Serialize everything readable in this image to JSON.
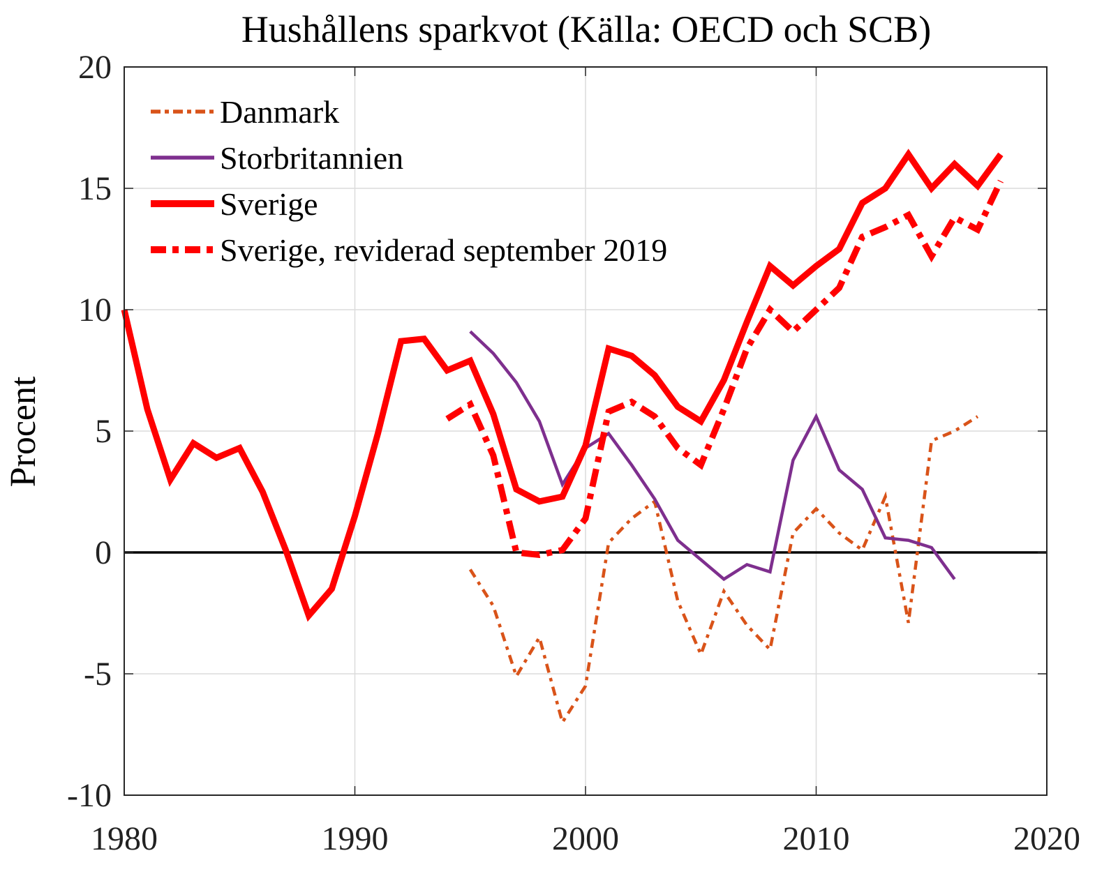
{
  "chart_data": {
    "type": "line",
    "title": "Hushållens sparkvot (Källa: OECD och SCB)",
    "xlabel": "",
    "ylabel": "Procent",
    "xlim": [
      1980,
      2020
    ],
    "ylim": [
      -10,
      20
    ],
    "xticks": [
      "1980",
      "1990",
      "2000",
      "2010",
      "2020"
    ],
    "yticks": [
      "-10",
      "-5",
      "0",
      "5",
      "10",
      "15",
      "20"
    ],
    "xtick_values": [
      1980,
      1990,
      2000,
      2010,
      2020
    ],
    "ytick_values": [
      -10,
      -5,
      0,
      5,
      10,
      15,
      20
    ],
    "grid": true,
    "zero_line": true,
    "legend_position": "top-left",
    "series": [
      {
        "name": "Danmark",
        "color": "#D95319",
        "style": "dash-dot",
        "x": [
          1995,
          1996,
          1997,
          1998,
          1999,
          2000,
          2001,
          2002,
          2003,
          2004,
          2005,
          2006,
          2007,
          2008,
          2009,
          2010,
          2011,
          2012,
          2013,
          2014,
          2015,
          2016,
          2017
        ],
        "values": [
          -0.7,
          -2.2,
          -5.1,
          -3.5,
          -7.0,
          -5.5,
          0.4,
          1.4,
          2.1,
          -2.0,
          -4.2,
          -1.6,
          -3.0,
          -4.0,
          0.8,
          1.8,
          0.8,
          0.1,
          2.3,
          -2.9,
          4.6,
          5.0,
          5.6
        ]
      },
      {
        "name": "Storbritannien",
        "color": "#7E2F8E",
        "style": "solid-thin",
        "x": [
          1995,
          1996,
          1997,
          1998,
          1999,
          2000,
          2001,
          2002,
          2003,
          2004,
          2005,
          2006,
          2007,
          2008,
          2009,
          2010,
          2011,
          2012,
          2013,
          2014,
          2015,
          2016
        ],
        "values": [
          9.1,
          8.2,
          7.0,
          5.4,
          2.8,
          4.3,
          4.9,
          3.6,
          2.2,
          0.5,
          -0.3,
          -1.1,
          -0.5,
          -0.8,
          3.8,
          5.6,
          3.4,
          2.6,
          0.6,
          0.5,
          0.2,
          -1.1
        ]
      },
      {
        "name": "Sverige",
        "color": "#FF0000",
        "style": "solid-thick",
        "x": [
          1980,
          1981,
          1982,
          1983,
          1984,
          1985,
          1986,
          1987,
          1988,
          1989,
          1990,
          1991,
          1992,
          1993,
          1994,
          1995,
          1996,
          1997,
          1998,
          1999,
          2000,
          2001,
          2002,
          2003,
          2004,
          2005,
          2006,
          2007,
          2008,
          2009,
          2010,
          2011,
          2012,
          2013,
          2014,
          2015,
          2016,
          2017,
          2018
        ],
        "values": [
          10.0,
          5.9,
          3.0,
          4.5,
          3.9,
          4.3,
          2.5,
          0.1,
          -2.6,
          -1.5,
          1.5,
          4.9,
          8.7,
          8.8,
          7.5,
          7.9,
          5.7,
          2.6,
          2.1,
          2.3,
          4.4,
          8.4,
          8.1,
          7.3,
          6.0,
          5.4,
          7.1,
          9.5,
          11.8,
          11.0,
          11.8,
          12.5,
          14.4,
          15.0,
          16.4,
          15.0,
          16.0,
          15.1,
          16.4
        ]
      },
      {
        "name": "Sverige, reviderad september 2019",
        "color": "#FF0000",
        "style": "dash-dot-thick",
        "x": [
          1994,
          1995,
          1996,
          1997,
          1998,
          1999,
          2000,
          2001,
          2002,
          2003,
          2004,
          2005,
          2006,
          2007,
          2008,
          2009,
          2010,
          2011,
          2012,
          2013,
          2014,
          2015,
          2016,
          2017,
          2018
        ],
        "values": [
          5.5,
          6.1,
          4.0,
          0.0,
          -0.1,
          0.1,
          1.4,
          5.8,
          6.2,
          5.6,
          4.3,
          3.6,
          5.9,
          8.4,
          10.0,
          9.1,
          10.0,
          10.9,
          13.0,
          13.4,
          13.9,
          12.2,
          13.8,
          13.3,
          15.3
        ]
      }
    ]
  }
}
